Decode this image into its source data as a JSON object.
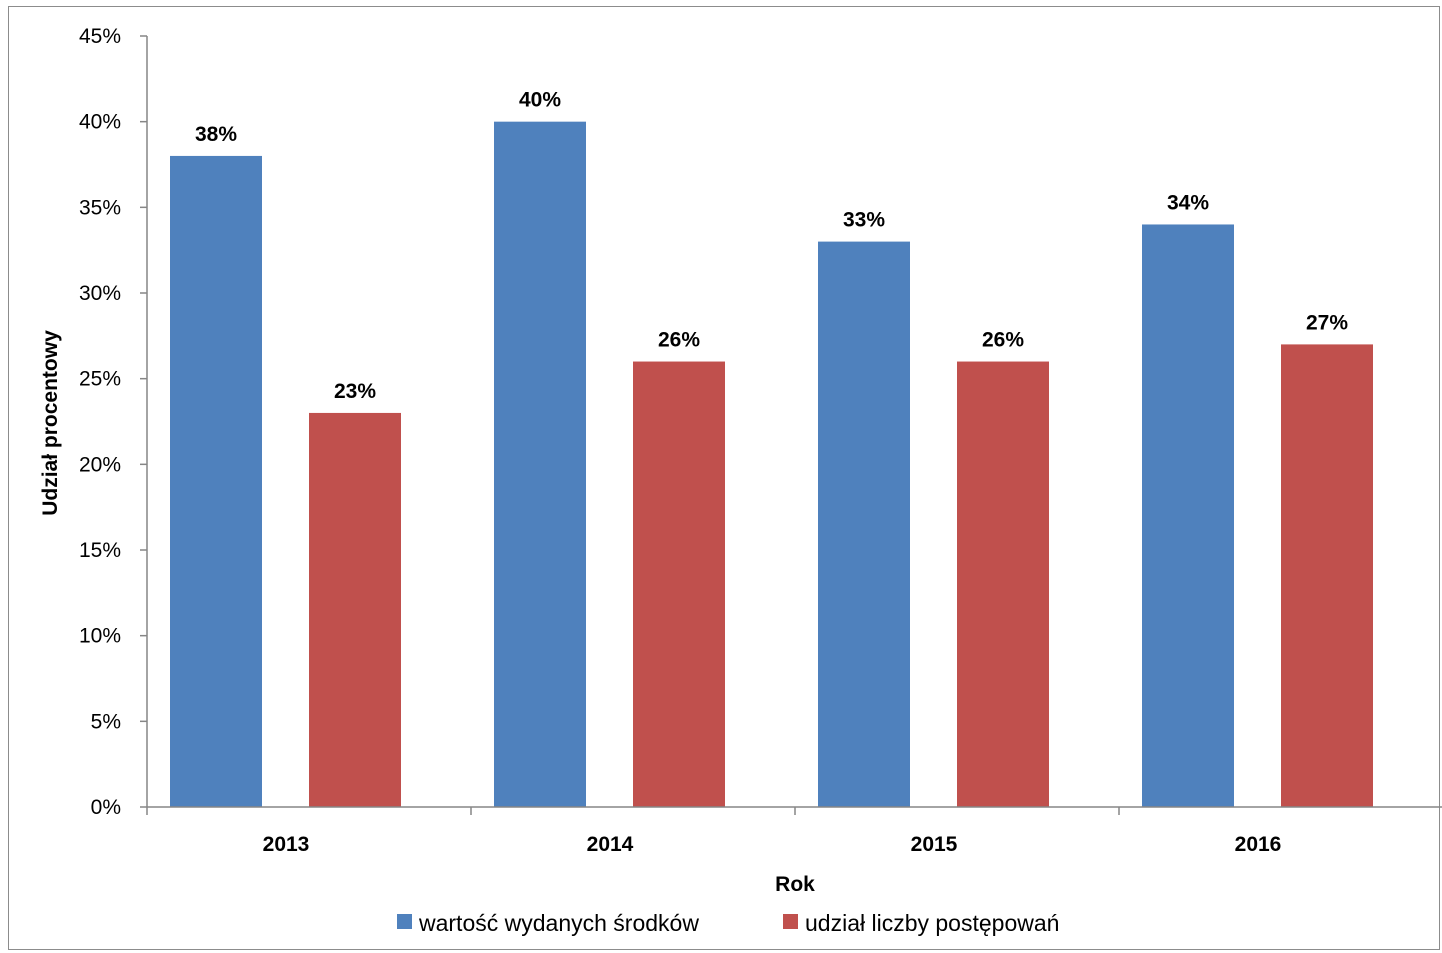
{
  "chart_data": {
    "type": "bar",
    "title": "",
    "xlabel": "Rok",
    "ylabel": "Udział procentowy",
    "ylim": [
      0,
      45
    ],
    "ytick_step": 5,
    "y_format": "percent",
    "categories": [
      "2013",
      "2014",
      "2015",
      "2016"
    ],
    "series": [
      {
        "name": "wartość wydanych środków",
        "color": "#4F81BD",
        "values": [
          38,
          40,
          33,
          34
        ],
        "labels": [
          "38%",
          "40%",
          "33%",
          "34%"
        ]
      },
      {
        "name": "udział liczby postępowań",
        "color": "#C0504D",
        "values": [
          23,
          26,
          26,
          27
        ],
        "labels": [
          "23%",
          "26%",
          "26%",
          "27%"
        ]
      }
    ],
    "grid": false,
    "legend_position": "bottom",
    "data_labels": true
  }
}
